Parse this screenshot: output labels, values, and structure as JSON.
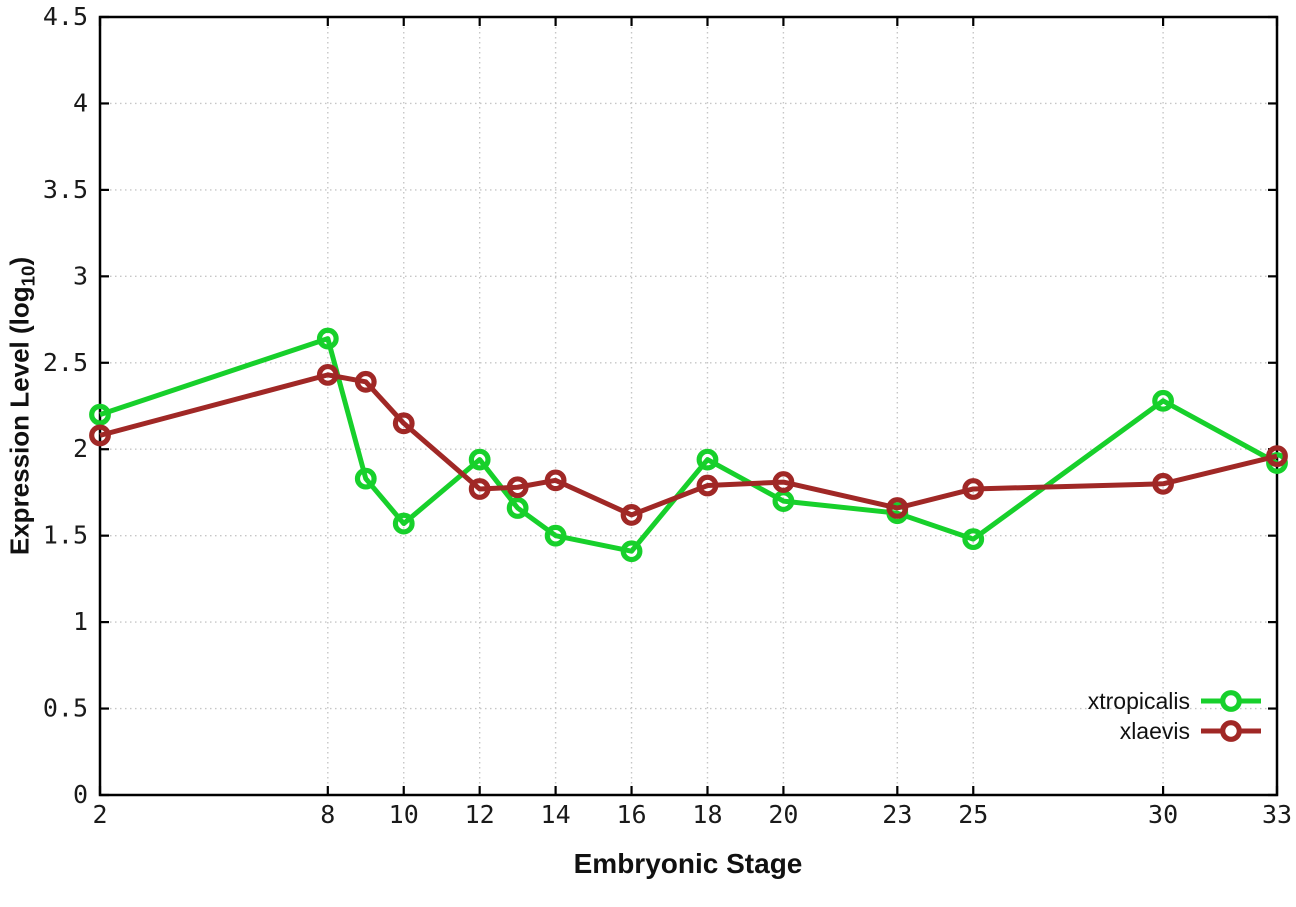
{
  "figure": {
    "xlabel": "Embryonic Stage",
    "ylabel_main": "Expression Level (log",
    "ylabel_sub": "10",
    "ylabel_close": ")",
    "background": "#ffffff",
    "axis_color": "#000000",
    "grid_color": "#c6c6c6",
    "tick_label_color": "#1a1a1a"
  },
  "chart_data": {
    "type": "line",
    "title": "",
    "xlabel": "Embryonic Stage",
    "ylabel": "Expression Level (log10)",
    "xlim": [
      2,
      33
    ],
    "ylim": [
      0,
      4.5
    ],
    "grid": true,
    "grid_style": "dotted",
    "legend_position": "bottom-right",
    "marker": "open-circle",
    "x": [
      2,
      8,
      9,
      10,
      12,
      13,
      14,
      16,
      18,
      20,
      23,
      25,
      30,
      33
    ],
    "x_ticks": [
      2,
      8,
      10,
      12,
      14,
      16,
      18,
      20,
      23,
      25,
      30,
      33
    ],
    "y_ticks": [
      0,
      0.5,
      1,
      1.5,
      2,
      2.5,
      3,
      3.5,
      4,
      4.5
    ],
    "series": [
      {
        "name": "xtropicalis",
        "color": "#17d02b",
        "values": [
          2.2,
          2.64,
          1.83,
          1.57,
          1.94,
          1.66,
          1.5,
          1.41,
          1.94,
          1.7,
          1.63,
          1.48,
          2.28,
          1.92
        ]
      },
      {
        "name": "xlaevis",
        "color": "#a02826",
        "values": [
          2.08,
          2.43,
          2.39,
          2.15,
          1.77,
          1.78,
          1.82,
          1.62,
          1.79,
          1.81,
          1.66,
          1.77,
          1.8,
          1.96
        ]
      }
    ]
  }
}
